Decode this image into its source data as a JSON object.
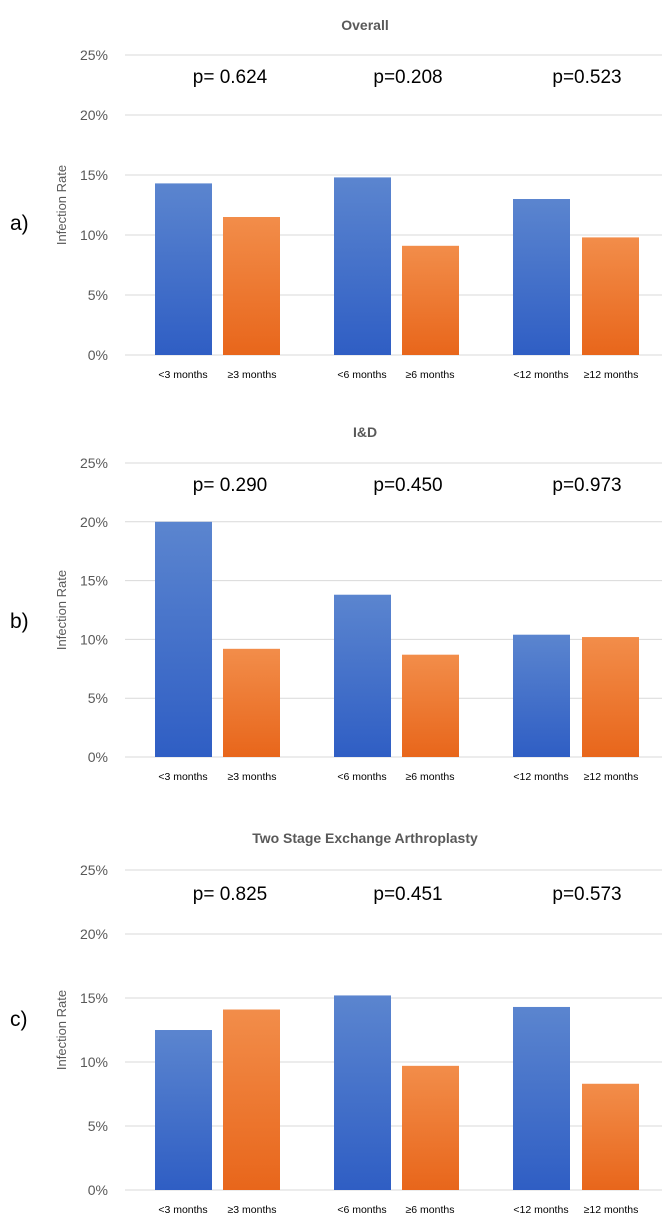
{
  "colors": {
    "blue_top": "#5b85cf",
    "blue_bottom": "#2f5ec4",
    "orange_top": "#f28d4a",
    "orange_bottom": "#e8661b",
    "grid": "#d9d9d9",
    "axis_text": "#595959"
  },
  "chart_data": [
    {
      "type": "bar",
      "panel_label": "a)",
      "title": "Overall",
      "ylabel": "Infection Rate",
      "ylim": [
        0,
        25
      ],
      "yticks": [
        "0%",
        "5%",
        "10%",
        "15%",
        "20%",
        "25%"
      ],
      "grid": true,
      "categories": [
        "<3 months",
        "≥3 months",
        "<6 months",
        "≥6 months",
        "<12 months",
        "≥12 months"
      ],
      "values": [
        14.3,
        11.5,
        14.8,
        9.1,
        13.0,
        9.8
      ],
      "p_values": [
        "p= 0.624",
        "p=0.208",
        "p=0.523"
      ]
    },
    {
      "type": "bar",
      "panel_label": "b)",
      "title": "I&D",
      "ylabel": "Infection Rate",
      "ylim": [
        0,
        25
      ],
      "yticks": [
        "0%",
        "5%",
        "10%",
        "15%",
        "20%",
        "25%"
      ],
      "grid": true,
      "categories": [
        "<3 months",
        "≥3 months",
        "<6 months",
        "≥6 months",
        "<12 months",
        "≥12 months"
      ],
      "values": [
        20.0,
        9.2,
        13.8,
        8.7,
        10.4,
        10.2
      ],
      "p_values": [
        "p= 0.290",
        "p=0.450",
        "p=0.973"
      ]
    },
    {
      "type": "bar",
      "panel_label": "c)",
      "title": "Two Stage Exchange Arthroplasty",
      "ylabel": "Infection Rate",
      "ylim": [
        0,
        25
      ],
      "yticks": [
        "0%",
        "5%",
        "10%",
        "15%",
        "20%",
        "25%"
      ],
      "grid": true,
      "categories": [
        "<3 months",
        "≥3 months",
        "<6 months",
        "≥6 months",
        "<12 months",
        "≥12 months"
      ],
      "values": [
        12.5,
        14.1,
        15.2,
        9.7,
        14.3,
        8.3
      ],
      "p_values": [
        "p= 0.825",
        "p=0.451",
        "p=0.573"
      ]
    }
  ]
}
